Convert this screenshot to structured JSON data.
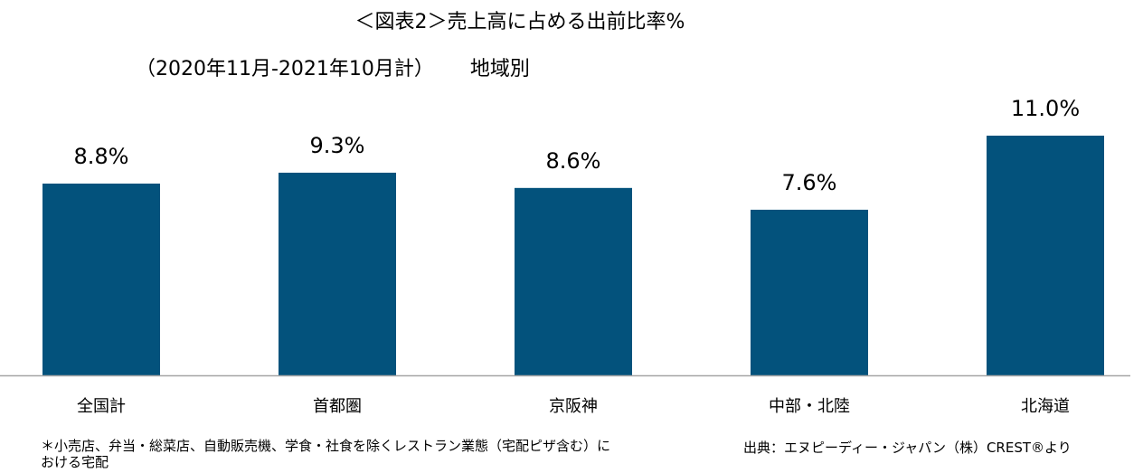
{
  "title_line1": "＜図表2＞売上高に占める出前比率%",
  "title_line2_period": "（2020年11月-2021年10月計）",
  "title_line2_region": "地域別",
  "footnote": "＊小売店、弁当・総菜店、自動販売機、学食・社食を除くレストラン業態（宅配ピザ含む）における宅配",
  "source": "出典：エヌピーディー・ジャパン（株）CREST®より",
  "colors": {
    "bar": "#03527c",
    "axis": "#a6a6a6"
  },
  "chart_data": {
    "type": "bar",
    "categories": [
      "全国計",
      "首都圏",
      "京阪神",
      "中部・北陸",
      "北海道"
    ],
    "values": [
      8.8,
      9.3,
      8.6,
      7.6,
      11.0
    ],
    "data_labels": [
      "8.8%",
      "9.3%",
      "8.6%",
      "7.6%",
      "11.0%"
    ],
    "ylim": [
      0,
      11.0
    ],
    "grid": false,
    "legend": "none"
  }
}
